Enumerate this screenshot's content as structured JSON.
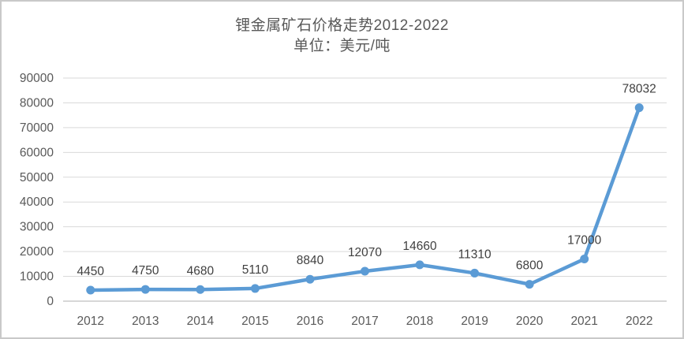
{
  "chart_data": {
    "type": "line",
    "title": "锂金属矿石价格走势2012-2022",
    "subtitle": "单位：美元/吨",
    "categories": [
      "2012",
      "2013",
      "2014",
      "2015",
      "2016",
      "2017",
      "2018",
      "2019",
      "2020",
      "2021",
      "2022"
    ],
    "values": [
      4450,
      4750,
      4680,
      5110,
      8840,
      12070,
      14660,
      11310,
      6800,
      17000,
      78032
    ],
    "data_labels": [
      "4450",
      "4750",
      "4680",
      "5110",
      "8840",
      "12070",
      "14660",
      "11310",
      "6800",
      "17000",
      "78032"
    ],
    "ylim": [
      0,
      90000
    ],
    "ytick_step": 10000,
    "ytick_labels": [
      "0",
      "10000",
      "20000",
      "30000",
      "40000",
      "50000",
      "60000",
      "70000",
      "80000",
      "90000"
    ],
    "grid": true,
    "legend": "none",
    "colors": {
      "line": "#5B9BD5",
      "marker": "#5B9BD5",
      "gridline": "#D9D9D9",
      "axis_line": "#BFBFBF",
      "tick_text": "#595959",
      "data_label_text": "#404040",
      "title_text": "#595959",
      "frame_border": "#C9C9C9",
      "background": "#FFFFFF"
    }
  }
}
